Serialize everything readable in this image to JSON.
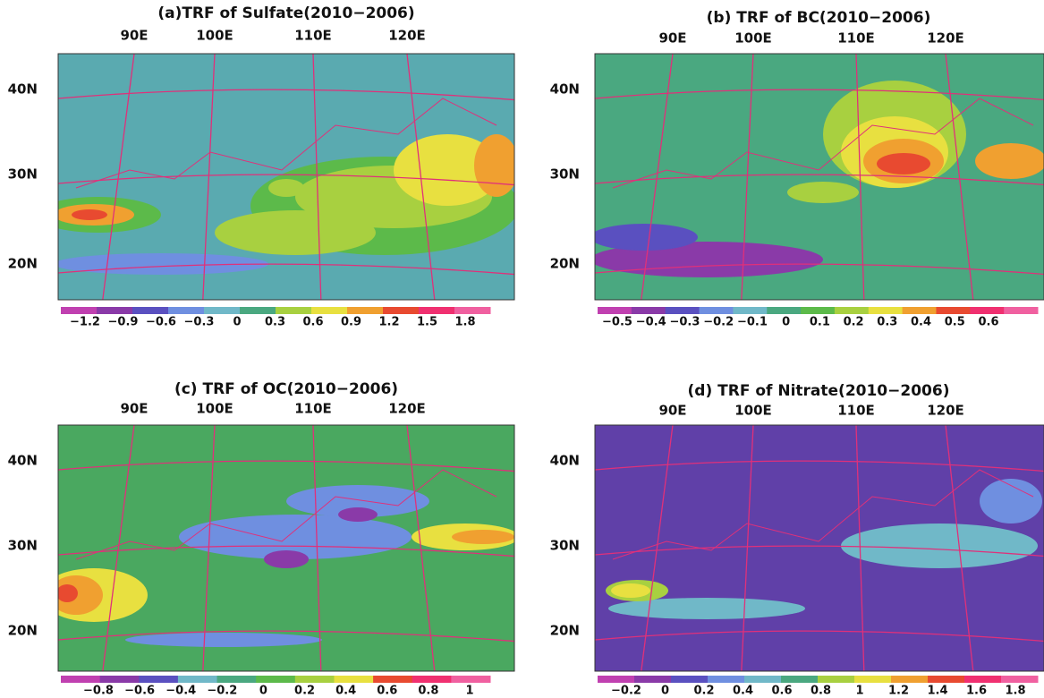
{
  "panels": [
    {
      "title": "(a)TRF of Sulfate(2010−2006)",
      "lon_labels": [
        "90E",
        "100E",
        "110E",
        "120E"
      ],
      "lat_labels": [
        "40N",
        "30N",
        "20N"
      ],
      "colorbar_labels": [
        "−1.2",
        "−0.9",
        "−0.6",
        "−0.3",
        "0",
        "0.3",
        "0.6",
        "0.9",
        "1.2",
        "1.5",
        "1.8"
      ]
    },
    {
      "title": "(b) TRF of BC(2010−2006)",
      "lon_labels": [
        "90E",
        "100E",
        "110E",
        "120E"
      ],
      "lat_labels": [
        "40N",
        "30N",
        "20N"
      ],
      "colorbar_labels": [
        "−0.5",
        "−0.4",
        "−0.3",
        "−0.2",
        "−0.1",
        "0",
        "0.1",
        "0.2",
        "0.3",
        "0.4",
        "0.5",
        "0.6"
      ]
    },
    {
      "title": "(c) TRF of OC(2010−2006)",
      "lon_labels": [
        "90E",
        "100E",
        "110E",
        "120E"
      ],
      "lat_labels": [
        "40N",
        "30N",
        "20N"
      ],
      "colorbar_labels": [
        "−0.8",
        "−0.6",
        "−0.4",
        "−0.2",
        "0",
        "0.2",
        "0.4",
        "0.6",
        "0.8",
        "1"
      ]
    },
    {
      "title": "(d) TRF of Nitrate(2010−2006)",
      "lon_labels": [
        "90E",
        "100E",
        "110E",
        "120E"
      ],
      "lat_labels": [
        "40N",
        "30N",
        "20N"
      ],
      "colorbar_labels": [
        "−0.2",
        "0",
        "0.2",
        "0.4",
        "0.6",
        "0.8",
        "1",
        "1.2",
        "1.4",
        "1.6",
        "1.8"
      ]
    }
  ]
}
